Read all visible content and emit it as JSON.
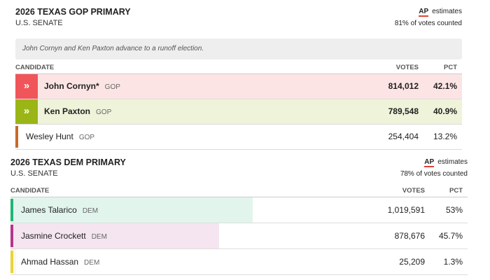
{
  "sections": [
    {
      "title": "2026 TEXAS GOP PRIMARY",
      "subtitle": "U.S. SENATE",
      "source": "AP",
      "source_note": "estimates",
      "counted": "81% of votes counted",
      "note": "John Cornyn and Ken Paxton advance to a runoff election.",
      "columns": [
        "CANDIDATE",
        "VOTES",
        "PCT"
      ],
      "pct_bars": false,
      "rows": [
        {
          "name": "John Cornyn*",
          "party": "GOP",
          "votes": "814,012",
          "pct": {
            "value": 42.1,
            "label": "42.1%"
          },
          "color": "#f0555a",
          "advances": true
        },
        {
          "name": "Ken Paxton",
          "party": "GOP",
          "votes": "789,548",
          "pct": {
            "value": 40.9,
            "label": "40.9%"
          },
          "color": "#9ab516",
          "advances": true
        },
        {
          "name": "Wesley Hunt",
          "party": "GOP",
          "votes": "254,404",
          "pct": {
            "value": 13.2,
            "label": "13.2%"
          },
          "color": "#c7692b",
          "advances": false
        }
      ]
    },
    {
      "title": "2026 TEXAS DEM PRIMARY",
      "subtitle": "U.S. SENATE",
      "source": "AP",
      "source_note": "estimates",
      "counted": "78% of votes counted",
      "columns": [
        "CANDIDATE",
        "VOTES",
        "PCT"
      ],
      "pct_bars": true,
      "rows": [
        {
          "name": "James Talarico",
          "party": "DEM",
          "votes": "1,019,591",
          "pct": {
            "value": 53,
            "label": "53%"
          },
          "color": "#22b573",
          "advances": false
        },
        {
          "name": "Jasmine Crockett",
          "party": "DEM",
          "votes": "878,676",
          "pct": {
            "value": 45.7,
            "label": "45.7%"
          },
          "color": "#b5348a",
          "advances": false
        },
        {
          "name": "Ahmad Hassan",
          "party": "DEM",
          "votes": "25,209",
          "pct": {
            "value": 1.3,
            "label": "1.3%"
          },
          "color": "#e8d43a",
          "advances": false
        }
      ]
    }
  ]
}
